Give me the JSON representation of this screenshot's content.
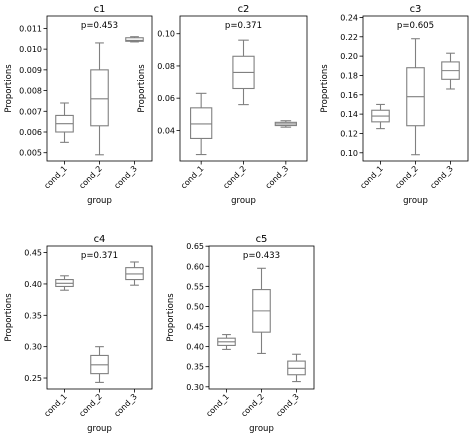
{
  "chart_data": [
    {
      "type": "box",
      "title": "c1",
      "annotation": "p=0.453",
      "xlabel": "group",
      "ylabel": "Proportions",
      "categories": [
        "cond_1",
        "cond_2",
        "cond_3"
      ],
      "ylim": [
        0.0046,
        0.0116
      ],
      "yticks": [
        0.005,
        0.006,
        0.007,
        0.008,
        0.009,
        0.01,
        0.011
      ],
      "ytick_labels": [
        "0.005",
        "0.006",
        "0.007",
        "0.008",
        "0.009",
        "0.010",
        "0.011"
      ],
      "boxes": [
        {
          "min": 0.0055,
          "q1": 0.006,
          "median": 0.0064,
          "q3": 0.0068,
          "max": 0.0074
        },
        {
          "min": 0.0049,
          "q1": 0.0063,
          "median": 0.0076,
          "q3": 0.009,
          "max": 0.0103
        },
        {
          "min": 0.01035,
          "q1": 0.01038,
          "median": 0.01042,
          "q3": 0.01055,
          "max": 0.0106
        }
      ]
    },
    {
      "type": "box",
      "title": "c2",
      "annotation": "p=0.371",
      "xlabel": "group",
      "ylabel": "Proportions",
      "categories": [
        "cond_1",
        "cond_2",
        "cond_3"
      ],
      "ylim": [
        0.021,
        0.111
      ],
      "yticks": [
        0.04,
        0.06,
        0.08,
        0.1
      ],
      "ytick_labels": [
        "0.04",
        "0.06",
        "0.08",
        "0.10"
      ],
      "boxes": [
        {
          "min": 0.025,
          "q1": 0.035,
          "median": 0.044,
          "q3": 0.054,
          "max": 0.063
        },
        {
          "min": 0.056,
          "q1": 0.066,
          "median": 0.076,
          "q3": 0.086,
          "max": 0.096
        },
        {
          "min": 0.042,
          "q1": 0.043,
          "median": 0.044,
          "q3": 0.045,
          "max": 0.046
        }
      ]
    },
    {
      "type": "box",
      "title": "c3",
      "annotation": "p=0.605",
      "xlabel": "group",
      "ylabel": "Proportions",
      "categories": [
        "cond_1",
        "cond_2",
        "cond_3"
      ],
      "ylim": [
        0.0915,
        0.2415
      ],
      "yticks": [
        0.1,
        0.12,
        0.14,
        0.16,
        0.18,
        0.2,
        0.22,
        0.24
      ],
      "ytick_labels": [
        "0.10",
        "0.12",
        "0.14",
        "0.16",
        "0.18",
        "0.20",
        "0.22",
        "0.24"
      ],
      "boxes": [
        {
          "min": 0.125,
          "q1": 0.132,
          "median": 0.138,
          "q3": 0.144,
          "max": 0.15
        },
        {
          "min": 0.098,
          "q1": 0.128,
          "median": 0.158,
          "q3": 0.188,
          "max": 0.218
        },
        {
          "min": 0.166,
          "q1": 0.176,
          "median": 0.185,
          "q3": 0.194,
          "max": 0.203
        }
      ]
    },
    {
      "type": "box",
      "title": "c4",
      "annotation": "p=0.371",
      "xlabel": "group",
      "ylabel": "Proportions",
      "categories": [
        "cond_1",
        "cond_2",
        "cond_3"
      ],
      "ylim": [
        0.2325,
        0.4605
      ],
      "yticks": [
        0.25,
        0.3,
        0.35,
        0.4,
        0.45
      ],
      "ytick_labels": [
        "0.25",
        "0.30",
        "0.35",
        "0.40",
        "0.45"
      ],
      "boxes": [
        {
          "min": 0.39,
          "q1": 0.396,
          "median": 0.401,
          "q3": 0.407,
          "max": 0.413
        },
        {
          "min": 0.243,
          "q1": 0.257,
          "median": 0.271,
          "q3": 0.286,
          "max": 0.3
        },
        {
          "min": 0.398,
          "q1": 0.407,
          "median": 0.416,
          "q3": 0.426,
          "max": 0.435
        }
      ]
    },
    {
      "type": "box",
      "title": "c5",
      "annotation": "p=0.433",
      "xlabel": "group",
      "ylabel": "Proportions",
      "categories": [
        "cond_1",
        "cond_2",
        "cond_3"
      ],
      "ylim": [
        0.2945,
        0.6505
      ],
      "yticks": [
        0.3,
        0.35,
        0.4,
        0.45,
        0.5,
        0.55,
        0.6,
        0.65
      ],
      "ytick_labels": [
        "0.30",
        "0.35",
        "0.40",
        "0.45",
        "0.50",
        "0.55",
        "0.60",
        "0.65"
      ],
      "boxes": [
        {
          "min": 0.393,
          "q1": 0.403,
          "median": 0.412,
          "q3": 0.421,
          "max": 0.43
        },
        {
          "min": 0.383,
          "q1": 0.436,
          "median": 0.489,
          "q3": 0.542,
          "max": 0.595
        },
        {
          "min": 0.313,
          "q1": 0.33,
          "median": 0.346,
          "q3": 0.364,
          "max": 0.381
        }
      ]
    }
  ]
}
